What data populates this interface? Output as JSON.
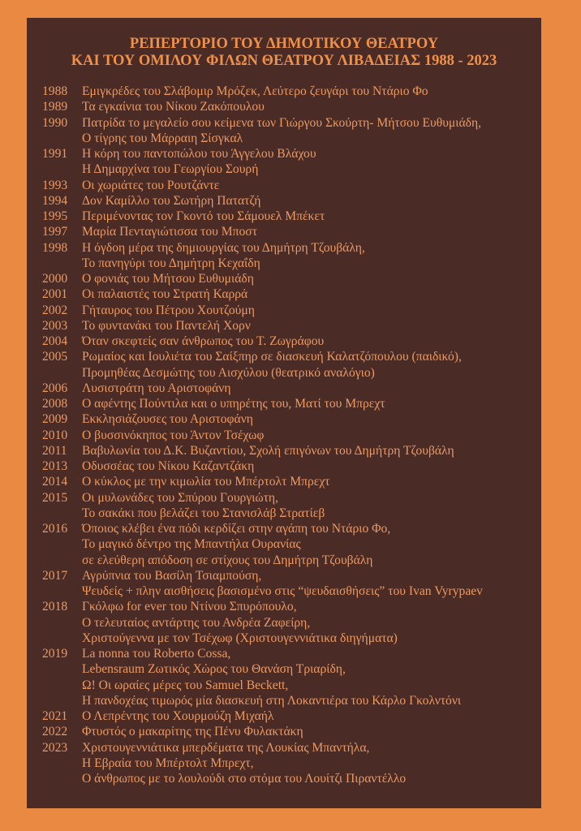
{
  "title": {
    "line1": "ΡΕΠΕΡΤΟΡΙΟ ΤΟΥ ΔΗΜΟΤΙΚΟΥ ΘΕΑΤΡΟΥ",
    "line2": "ΚΑΙ ΤΟΥ ΟΜΙΛΟΥ ΦΙΛΩΝ ΘΕΑΤΡΟΥ ΛΙΒΑΔΕΙΑΣ 1988 - 2023"
  },
  "colors": {
    "background": "#ea8a42",
    "panel": "#4b2b26",
    "text": "#ec9a62"
  },
  "entries": [
    {
      "year": "1988",
      "lines": [
        "Εμιγκρέδες του Σλάβομιρ Μρόζεκ, Λεύτερο ζευγάρι του Ντάριο Φο"
      ]
    },
    {
      "year": "1989",
      "lines": [
        "Τα εγκαίνια του Νίκου Ζακόπουλου"
      ]
    },
    {
      "year": "1990",
      "lines": [
        "Πατρίδα το μεγαλείο σου κείμενα των Γιώργου Σκούρτη- Μήτσου Ευθυμιάδη,",
        "Ο τίγρης του Μάρραιη Σίσγκαλ"
      ]
    },
    {
      "year": "1991",
      "lines": [
        "Η  κόρη του παντοπώλου του Άγγελου Βλάχου",
        "Η Δημαρχίνα του Γεωργίου Σουρή"
      ]
    },
    {
      "year": "1993",
      "lines": [
        "Οι χωριάτες του Ρουτζάντε"
      ]
    },
    {
      "year": "1994",
      "lines": [
        "Δον Καμίλλο του Σωτήρη Πατατζή"
      ]
    },
    {
      "year": "1995",
      "lines": [
        "Περιμένοντας τον Γκοντό του Σάμουελ Μπέκετ"
      ]
    },
    {
      "year": "1997",
      "lines": [
        "Μαρία Πενταγιώτισσα του Μποστ"
      ]
    },
    {
      "year": "1998",
      "lines": [
        "Η όγδοη μέρα της δημιουργίας του Δημήτρη Τζουβάλη,",
        "Το πανηγύρι του Δημήτρη Κεχαΐδη"
      ]
    },
    {
      "year": "2000",
      "lines": [
        "Ο φονιάς του Μήτσου Ευθυμιάδη"
      ]
    },
    {
      "year": "2001",
      "lines": [
        "Οι παλαιστές του Στρατή Καρρά"
      ]
    },
    {
      "year": "2002",
      "lines": [
        "Γήταυρος του Πέτρου Χουτζούμη"
      ]
    },
    {
      "year": "2003",
      "lines": [
        "Το φυντανάκι του Παντελή Χορν"
      ]
    },
    {
      "year": "2004",
      "lines": [
        "Όταν σκεφτείς σαν άνθρωπος του Τ. Ζωγράφου"
      ]
    },
    {
      "year": "2005",
      "lines": [
        "Ρωμαίος και Ιουλιέτα του Σαίξπηρ σε διασκευή Καλατζόπουλου (παιδικό),",
        "Προμηθέας Δεσμώτης του Αισχύλου (θεατρικό αναλόγιο)"
      ]
    },
    {
      "year": "2006",
      "lines": [
        "Λυσιστράτη του Αριστοφάνη"
      ]
    },
    {
      "year": "2008",
      "lines": [
        "Ο αφέντης Πούντιλα και ο υπηρέτης του, Ματί του Μπρεχτ"
      ]
    },
    {
      "year": "2009",
      "lines": [
        "Εκκλησιάζουσες του Αριστοφάνη"
      ]
    },
    {
      "year": "2010",
      "lines": [
        "Ο βυσσινόκηπος του Άντον Τσέχωφ"
      ]
    },
    {
      "year": "2011",
      "lines": [
        "Βαβυλωνία του Δ.Κ. Βυζαντίου, Σχολή επιγόνων του Δημήτρη Τζουβάλη"
      ]
    },
    {
      "year": "2013",
      "lines": [
        "Οδυσσέας του Νίκου Καζαντζάκη"
      ]
    },
    {
      "year": "2014",
      "lines": [
        "Ο κύκλος με την κιμωλία του Μπέρτολτ Μπρεχτ"
      ]
    },
    {
      "year": "2015",
      "lines": [
        "Οι μυλωνάδες του Σπύρου Γουργιώτη,",
        "Το σακάκι που βελάζει του Στανισλάβ Στρατίεβ"
      ]
    },
    {
      "year": "2016",
      "lines": [
        "Όποιος κλέβει ένα πόδι κερδίζει στην αγάπη του Ντάριο Φο,",
        "Το μαγικό δέντρο της Μπαντήλα Ουρανίας",
        "σε ελεύθερη απόδοση σε στίχους του Δημήτρη Τζουβάλη"
      ]
    },
    {
      "year": "2017",
      "lines": [
        "Αγρύπνια του Βασίλη Τσιαμπούση,",
        "Ψευδείς + πλην αισθήσεις βασισμένο στις “ψευδαισθήσεις” του Ivan Vyrypaev"
      ]
    },
    {
      "year": "2018",
      "lines": [
        "Γκόλφω for ever του Ντίνου Σπυρόπουλο,",
        "Ο τελευταίος αντάρτης του Ανδρέα Ζαφείρη,",
        "Χριστούγεννα με τον Τσέχωφ (Χριστουγεννιάτικα διηγήματα)"
      ]
    },
    {
      "year": "2019",
      "lines": [
        "La nonna του Roberto Cossa,",
        "Lebensraum Ζωτικός Χώρος του Θανάση Τριαρίδη,",
        "Ω! Οι ωραίες μέρες του Samuel Beckett,",
        "Η πανδοχέας τιμωρός μία διασκευή στη Λοκαντιέρα του Κάρλο  Γκολντόνι"
      ]
    },
    {
      "year": "2021",
      "lines": [
        "Ο Λεπρέντης του Χουρμούζη Μιχαήλ"
      ]
    },
    {
      "year": "2022",
      "lines": [
        "Φτυστός ο μακαρίτης της Πένυ Φυλακτάκη"
      ]
    },
    {
      "year": "2023",
      "lines": [
        "Χριστουγεννιάτικα μπερδέματα της Λουκίας Μπαντήλα,",
        "Η Εβραία του Μπέρτολτ Μπρεχτ,",
        "Ο άνθρωπος με το λουλούδι στο στόμα  του Λουίτζι Πιραντέλλο"
      ]
    }
  ]
}
